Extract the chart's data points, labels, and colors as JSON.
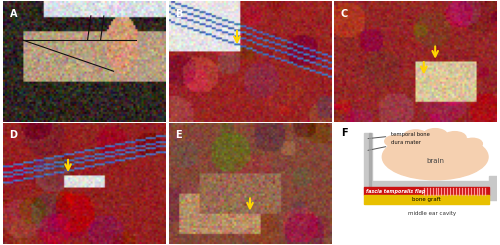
{
  "figure_width": 5.0,
  "figure_height": 2.45,
  "dpi": 100,
  "bg_color": "#ffffff",
  "panel_label_fontsize": 7,
  "panel_label_color_photo": "#ffffff",
  "panel_label_color_F": "#000000",
  "arrow_color": "#FFD700",
  "border_color": "#333333",
  "border_width": 0.8,
  "schematic": {
    "bg": "#f2f2f2",
    "bone_color": "#c8c8c8",
    "bone_dark": "#a0a0a0",
    "brain_fill": "#f5d0b0",
    "brain_outline": "#e8b898",
    "fascia_color": "#cc1111",
    "fascia_hatch_color": "#ff8888",
    "bone_graft_color": "#e8c000",
    "bone_graft_label_color": "#000000",
    "label_fontsize": 4.5,
    "label_color": "#111111",
    "middle_ear_label": "middle ear cavity",
    "brain_label": "brain",
    "temporal_bone_label": "temporal bone",
    "dura_mater_label": "dura mater",
    "fascia_label": "fascia temporalis flap",
    "bone_graft_label": "bone graft"
  }
}
